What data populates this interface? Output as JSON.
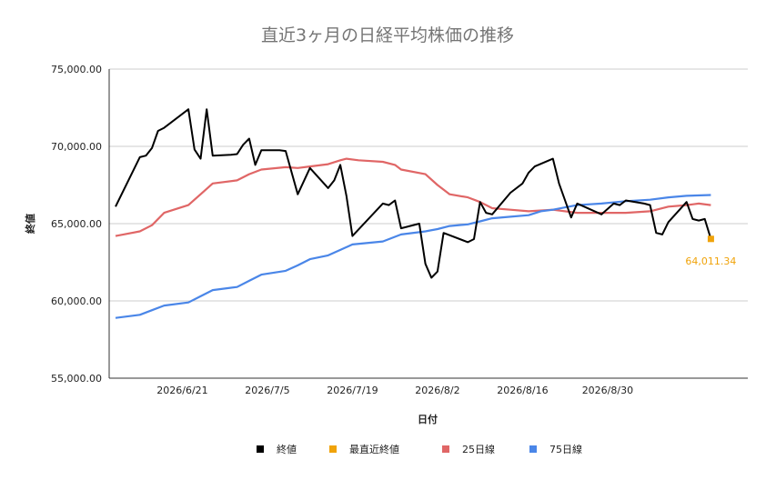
{
  "chart_data": {
    "type": "line",
    "title": "直近3ヶ月の日経平均株価の推移",
    "xlabel": "日付",
    "ylabel": "終値",
    "ylim": [
      55000,
      75000
    ],
    "yticks": [
      "75,000.00",
      "70,000.00",
      "65,000.00",
      "60,000.00",
      "55,000.00"
    ],
    "ytick_values": [
      75000,
      70000,
      65000,
      60000,
      55000
    ],
    "x_start": "2026-06-10",
    "x_end": "2026-09-08",
    "xticks": [
      {
        "date": "2026-06-21",
        "label": "2026/6/21"
      },
      {
        "date": "2026-07-05",
        "label": "2026/7/5"
      },
      {
        "date": "2026-07-19",
        "label": "2026/7/19"
      },
      {
        "date": "2026-08-02",
        "label": "2026/8/2"
      },
      {
        "date": "2026-08-16",
        "label": "2026/8/16"
      },
      {
        "date": "2026-08-30",
        "label": "2026/8/30"
      }
    ],
    "grid": "horizontal",
    "legend_position": "bottom",
    "series": [
      {
        "name": "終値",
        "color": "#000000",
        "kind": "line",
        "points": [
          [
            "2026-06-10",
            66100
          ],
          [
            "2026-06-14",
            69300
          ],
          [
            "2026-06-15",
            69400
          ],
          [
            "2026-06-16",
            69900
          ],
          [
            "2026-06-17",
            71000
          ],
          [
            "2026-06-18",
            71200
          ],
          [
            "2026-06-22",
            72400
          ],
          [
            "2026-06-23",
            69800
          ],
          [
            "2026-06-24",
            69200
          ],
          [
            "2026-06-25",
            72400
          ],
          [
            "2026-06-26",
            69400
          ],
          [
            "2026-06-29",
            69450
          ],
          [
            "2026-06-30",
            69500
          ],
          [
            "2026-07-01",
            70100
          ],
          [
            "2026-07-02",
            70500
          ],
          [
            "2026-07-03",
            68800
          ],
          [
            "2026-07-04",
            69750
          ],
          [
            "2026-07-07",
            69750
          ],
          [
            "2026-07-08",
            69700
          ],
          [
            "2026-07-10",
            66900
          ],
          [
            "2026-07-12",
            68600
          ],
          [
            "2026-07-15",
            67300
          ],
          [
            "2026-07-16",
            67800
          ],
          [
            "2026-07-17",
            68800
          ],
          [
            "2026-07-18",
            66800
          ],
          [
            "2026-07-19",
            64200
          ],
          [
            "2026-07-24",
            66300
          ],
          [
            "2026-07-25",
            66200
          ],
          [
            "2026-07-26",
            66500
          ],
          [
            "2026-07-27",
            64700
          ],
          [
            "2026-07-30",
            65000
          ],
          [
            "2026-07-31",
            62400
          ],
          [
            "2026-08-01",
            61500
          ],
          [
            "2026-08-02",
            61900
          ],
          [
            "2026-08-03",
            64400
          ],
          [
            "2026-08-07",
            63800
          ],
          [
            "2026-08-08",
            64000
          ],
          [
            "2026-08-09",
            66400
          ],
          [
            "2026-08-10",
            65700
          ],
          [
            "2026-08-11",
            65600
          ],
          [
            "2026-08-14",
            67000
          ],
          [
            "2026-08-16",
            67600
          ],
          [
            "2026-08-17",
            68300
          ],
          [
            "2026-08-18",
            68700
          ],
          [
            "2026-08-21",
            69200
          ],
          [
            "2026-08-22",
            67600
          ],
          [
            "2026-08-24",
            65400
          ],
          [
            "2026-08-25",
            66300
          ],
          [
            "2026-08-29",
            65600
          ],
          [
            "2026-08-31",
            66300
          ],
          [
            "2026-09-01",
            66200
          ],
          [
            "2026-09-02",
            66500
          ],
          [
            "2026-09-05",
            66300
          ],
          [
            "2026-09-06",
            66200
          ],
          [
            "2026-09-07",
            64400
          ],
          [
            "2026-09-08",
            64300
          ],
          [
            "2026-09-09",
            65100
          ],
          [
            "2026-09-12",
            66400
          ],
          [
            "2026-09-13",
            65300
          ],
          [
            "2026-09-14",
            65200
          ],
          [
            "2026-09-15",
            65300
          ],
          [
            "2026-09-16",
            64011.34
          ]
        ]
      },
      {
        "name": "最直近終値",
        "color": "#f0a30a",
        "kind": "marker",
        "points": [
          [
            "2026-09-16",
            64011.34
          ]
        ],
        "label": "64,011.34"
      },
      {
        "name": "25日線",
        "color": "#e06666",
        "kind": "line",
        "points": [
          [
            "2026-06-10",
            64200
          ],
          [
            "2026-06-14",
            64500
          ],
          [
            "2026-06-16",
            64900
          ],
          [
            "2026-06-18",
            65700
          ],
          [
            "2026-06-22",
            66200
          ],
          [
            "2026-06-24",
            66900
          ],
          [
            "2026-06-26",
            67600
          ],
          [
            "2026-06-30",
            67800
          ],
          [
            "2026-07-02",
            68200
          ],
          [
            "2026-07-04",
            68500
          ],
          [
            "2026-07-08",
            68650
          ],
          [
            "2026-07-10",
            68600
          ],
          [
            "2026-07-12",
            68700
          ],
          [
            "2026-07-15",
            68850
          ],
          [
            "2026-07-17",
            69100
          ],
          [
            "2026-07-18",
            69200
          ],
          [
            "2026-07-20",
            69100
          ],
          [
            "2026-07-24",
            69000
          ],
          [
            "2026-07-26",
            68800
          ],
          [
            "2026-07-27",
            68500
          ],
          [
            "2026-07-31",
            68200
          ],
          [
            "2026-08-02",
            67500
          ],
          [
            "2026-08-04",
            66900
          ],
          [
            "2026-08-07",
            66700
          ],
          [
            "2026-08-09",
            66400
          ],
          [
            "2026-08-11",
            66000
          ],
          [
            "2026-08-14",
            65900
          ],
          [
            "2026-08-17",
            65800
          ],
          [
            "2026-08-21",
            65900
          ],
          [
            "2026-08-25",
            65700
          ],
          [
            "2026-08-29",
            65700
          ],
          [
            "2026-09-02",
            65700
          ],
          [
            "2026-09-06",
            65800
          ],
          [
            "2026-09-09",
            66100
          ],
          [
            "2026-09-12",
            66200
          ],
          [
            "2026-09-14",
            66300
          ],
          [
            "2026-09-16",
            66200
          ]
        ]
      },
      {
        "name": "75日線",
        "color": "#4a86e8",
        "kind": "line",
        "points": [
          [
            "2026-06-10",
            58900
          ],
          [
            "2026-06-14",
            59100
          ],
          [
            "2026-06-16",
            59400
          ],
          [
            "2026-06-18",
            59700
          ],
          [
            "2026-06-22",
            59900
          ],
          [
            "2026-06-24",
            60300
          ],
          [
            "2026-06-26",
            60700
          ],
          [
            "2026-06-30",
            60900
          ],
          [
            "2026-07-02",
            61300
          ],
          [
            "2026-07-04",
            61700
          ],
          [
            "2026-07-08",
            61950
          ],
          [
            "2026-07-10",
            62300
          ],
          [
            "2026-07-12",
            62700
          ],
          [
            "2026-07-15",
            62950
          ],
          [
            "2026-07-17",
            63300
          ],
          [
            "2026-07-19",
            63650
          ],
          [
            "2026-07-24",
            63850
          ],
          [
            "2026-07-27",
            64300
          ],
          [
            "2026-07-31",
            64500
          ],
          [
            "2026-08-02",
            64650
          ],
          [
            "2026-08-04",
            64850
          ],
          [
            "2026-08-07",
            64950
          ],
          [
            "2026-08-09",
            65150
          ],
          [
            "2026-08-11",
            65350
          ],
          [
            "2026-08-14",
            65450
          ],
          [
            "2026-08-17",
            65550
          ],
          [
            "2026-08-19",
            65800
          ],
          [
            "2026-08-21",
            65900
          ],
          [
            "2026-08-25",
            66200
          ],
          [
            "2026-08-29",
            66300
          ],
          [
            "2026-09-02",
            66450
          ],
          [
            "2026-09-06",
            66550
          ],
          [
            "2026-09-09",
            66700
          ],
          [
            "2026-09-12",
            66800
          ],
          [
            "2026-09-16",
            66850
          ]
        ]
      }
    ]
  }
}
